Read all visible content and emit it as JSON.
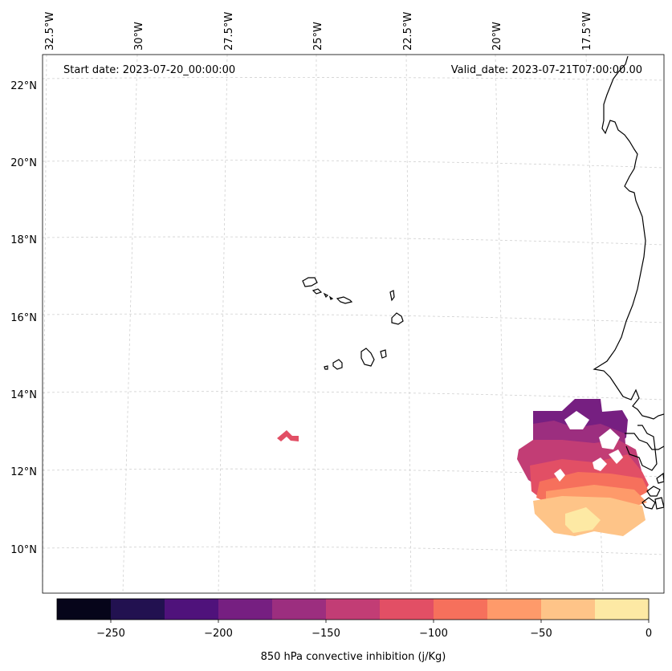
{
  "map": {
    "start_label": "Start date: 2023-07-20_00:00:00",
    "valid_label": "Valid_date: 2023-07-21T07:00:00.00",
    "lon_labels": [
      "32.5°W",
      "30°W",
      "27.5°W",
      "25°W",
      "22.5°W",
      "20°W",
      "17.5°W"
    ],
    "lat_labels": [
      "22°N",
      "20°N",
      "18°N",
      "16°N",
      "14°N",
      "12°N",
      "10°N"
    ],
    "gridlines": true
  },
  "colorbar": {
    "label": "850 hPa convective inhibition (j/Kg)",
    "ticks": [
      "−250",
      "−200",
      "−150",
      "−100",
      "−50",
      "0"
    ],
    "colors": [
      "#06051a",
      "#221150",
      "#4f127b",
      "#761f81",
      "#9c2e7f",
      "#c23d75",
      "#e24f65",
      "#f6705c",
      "#fe9a6a",
      "#fec488",
      "#fde9a4"
    ]
  }
}
